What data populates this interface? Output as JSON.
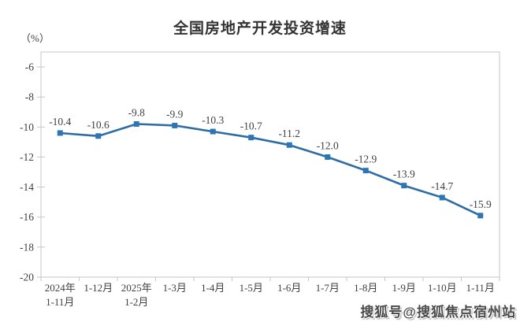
{
  "chart_data": {
    "type": "line",
    "title": "全国房地产开发投资增速",
    "unit_label": "（%）",
    "categories": [
      [
        "2024年",
        "1-11月"
      ],
      [
        "1-12月"
      ],
      [
        "2025年",
        "1-2月"
      ],
      [
        "1-3月"
      ],
      [
        "1-4月"
      ],
      [
        "1-5月"
      ],
      [
        "1-6月"
      ],
      [
        "1-7月"
      ],
      [
        "1-8月"
      ],
      [
        "1-9月"
      ],
      [
        "1-10月"
      ],
      [
        "1-11月"
      ]
    ],
    "values": [
      -10.4,
      -10.6,
      -9.8,
      -9.9,
      -10.3,
      -10.7,
      -11.2,
      -12.0,
      -12.9,
      -13.9,
      -14.7,
      -15.9
    ],
    "data_labels": [
      "-10.4",
      "-10.6",
      "-9.8",
      "-9.9",
      "-10.3",
      "-10.7",
      "-11.2",
      "-12.0",
      "-12.9",
      "-13.9",
      "-14.7",
      "-15.9"
    ],
    "yticks": [
      -6,
      -8,
      -10,
      -12,
      -14,
      -16,
      -18,
      -20
    ],
    "ylim": [
      -20,
      -5
    ],
    "xlabel": "",
    "ylabel": "（%）",
    "grid": false,
    "legend_position": "none",
    "colors": {
      "line": "#2e6da4",
      "marker": "#2e75b6",
      "axis": "#c6c6c6",
      "text": "#404040",
      "title": "#333333"
    }
  },
  "watermark": {
    "text": "搜狐号@搜狐焦点宿州站"
  }
}
